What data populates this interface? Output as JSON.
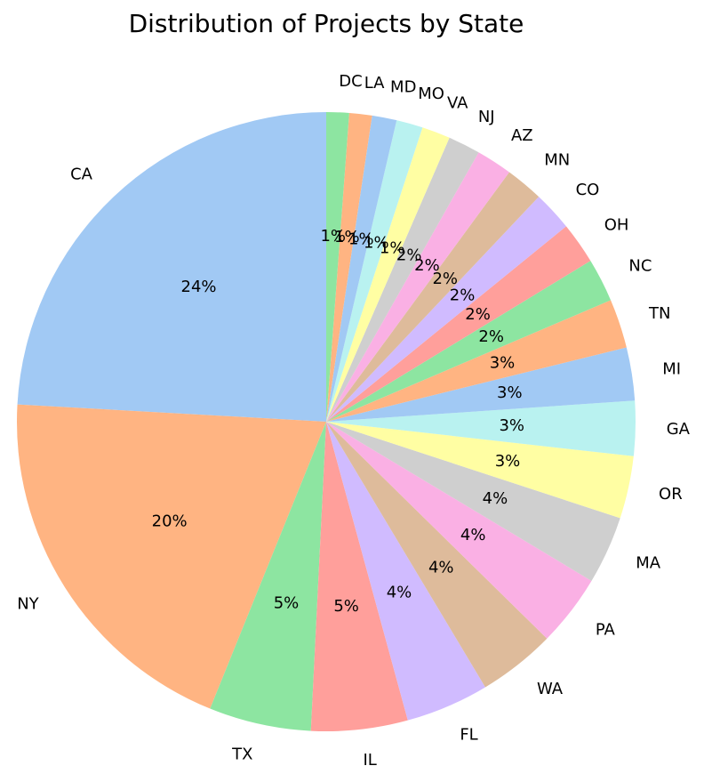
{
  "chart_data": {
    "type": "pie",
    "title": "Distribution of Projects by State",
    "start_angle_deg": 90,
    "direction": "counterclockwise",
    "colors": [
      "#a1c9f4",
      "#ffb482",
      "#8de5a1",
      "#ff9f9b",
      "#d0bbff",
      "#debb9b",
      "#fab0e4",
      "#cfcfcf",
      "#fffea3",
      "#b9f2f0"
    ],
    "slices": [
      {
        "label": "CA",
        "value": 24.4,
        "pct_label": "24%"
      },
      {
        "label": "NY",
        "value": 20.0,
        "pct_label": "20%"
      },
      {
        "label": "TX",
        "value": 5.4,
        "pct_label": "5%"
      },
      {
        "label": "IL",
        "value": 5.1,
        "pct_label": "5%"
      },
      {
        "label": "FL",
        "value": 4.4,
        "pct_label": "4%"
      },
      {
        "label": "WA",
        "value": 4.1,
        "pct_label": "4%"
      },
      {
        "label": "PA",
        "value": 3.8,
        "pct_label": "4%"
      },
      {
        "label": "MA",
        "value": 3.6,
        "pct_label": "4%"
      },
      {
        "label": "OR",
        "value": 3.3,
        "pct_label": "3%"
      },
      {
        "label": "GA",
        "value": 2.9,
        "pct_label": "3%"
      },
      {
        "label": "MI",
        "value": 2.8,
        "pct_label": "3%"
      },
      {
        "label": "TN",
        "value": 2.6,
        "pct_label": "3%"
      },
      {
        "label": "NC",
        "value": 2.3,
        "pct_label": "2%"
      },
      {
        "label": "OH",
        "value": 2.2,
        "pct_label": "2%"
      },
      {
        "label": "CO",
        "value": 2.1,
        "pct_label": "2%"
      },
      {
        "label": "MN",
        "value": 2.0,
        "pct_label": "2%"
      },
      {
        "label": "AZ",
        "value": 1.9,
        "pct_label": "2%"
      },
      {
        "label": "NJ",
        "value": 1.7,
        "pct_label": "2%"
      },
      {
        "label": "VA",
        "value": 1.5,
        "pct_label": "1%"
      },
      {
        "label": "MO",
        "value": 1.4,
        "pct_label": "1%"
      },
      {
        "label": "MD",
        "value": 1.3,
        "pct_label": "1%"
      },
      {
        "label": "LA",
        "value": 1.2,
        "pct_label": "1%"
      },
      {
        "label": "DC",
        "value": 1.2,
        "pct_label": "1%"
      }
    ]
  }
}
